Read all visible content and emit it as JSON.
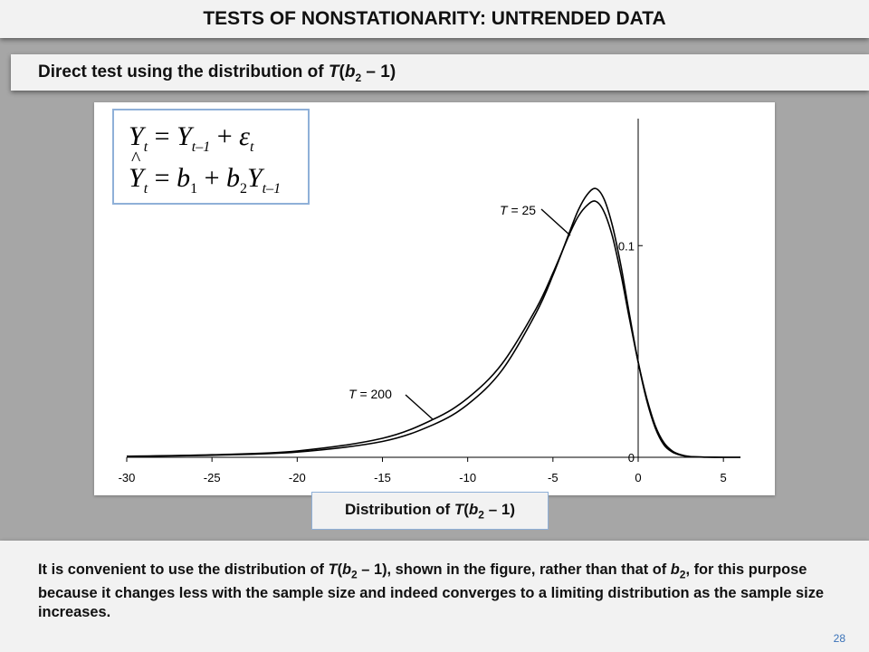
{
  "header": {
    "title": "TESTS OF NONSTATIONARITY: UNTRENDED DATA",
    "subtitle_prefix": "Direct test using the distribution of ",
    "subtitle_T": "T",
    "subtitle_open": "(",
    "subtitle_b": "b",
    "subtitle_sub": "2",
    "subtitle_rest": " – 1)"
  },
  "equations": {
    "line1": {
      "Y": "Y",
      "t": "t",
      "eq": " = ",
      "Y2": "Y",
      "t1": "t–1",
      "plus": " + ",
      "eps": "ε",
      "t2": "t"
    },
    "line2": {
      "Yhat": "Y",
      "t": "t",
      "eq": " = ",
      "b1": "b",
      "one": "1",
      "plus": " + ",
      "b2": "b",
      "two": "2",
      "Y": "Y",
      "t1": "t–1"
    }
  },
  "caption": {
    "prefix": "Distribution of ",
    "T": "T",
    "open": "(",
    "b": "b",
    "sub": "2",
    "rest": " – 1)"
  },
  "body": {
    "p1": "It is convenient to use the distribution of ",
    "p1_T": "T",
    "p1_open": "(",
    "p1_b": "b",
    "p1_sub": "2",
    "p1_mid": " – 1), shown in the figure, rather than that of ",
    "p1_b2": "b",
    "p1_sub2": "2",
    "p1_end": ", for this purpose because it changes less with the sample size and indeed converges to a limiting distribution as the sample size increases."
  },
  "page_number": "28",
  "chart_data": {
    "type": "line",
    "xlim": [
      -30,
      6
    ],
    "ylim": [
      0,
      0.16
    ],
    "x_ticks": [
      "-30",
      "-25",
      "-20",
      "-15",
      "-10",
      "-5",
      "0",
      "5"
    ],
    "x_tick_values": [
      -30,
      -25,
      -20,
      -15,
      -10,
      -5,
      0,
      5
    ],
    "y_ticks": [
      "0",
      "0.1"
    ],
    "y_tick_values": [
      0,
      0.1
    ],
    "grid": false,
    "annotations": [
      {
        "T": "T",
        "rest": " = 25"
      },
      {
        "T": "T",
        "rest": " = 200"
      }
    ],
    "series": [
      {
        "x": [
          -30,
          -25,
          -20,
          -15,
          -12,
          -10,
          -8,
          -6,
          -5,
          -4,
          -3.5,
          -3,
          -2.5,
          -2,
          -1.5,
          -1,
          -0.5,
          0,
          0.5,
          1,
          1.5,
          2,
          2.5,
          3,
          4,
          5,
          6
        ],
        "y": [
          0.0005,
          0.0012,
          0.003,
          0.009,
          0.018,
          0.028,
          0.044,
          0.07,
          0.087,
          0.106,
          0.114,
          0.119,
          0.121,
          0.116,
          0.104,
          0.086,
          0.065,
          0.045,
          0.028,
          0.015,
          0.007,
          0.003,
          0.0012,
          0.0004,
          0.0001,
          2e-05,
          0
        ]
      },
      {
        "x": [
          -30,
          -25,
          -20,
          -15,
          -12,
          -10,
          -8,
          -6,
          -5,
          -4,
          -3.5,
          -3,
          -2.5,
          -2,
          -1.5,
          -1,
          -0.5,
          0,
          0.5,
          1,
          1.5,
          2,
          2.5,
          3,
          4,
          5,
          6
        ],
        "y": [
          0.0004,
          0.001,
          0.0025,
          0.0075,
          0.0155,
          0.025,
          0.041,
          0.068,
          0.086,
          0.107,
          0.117,
          0.124,
          0.127,
          0.122,
          0.109,
          0.09,
          0.067,
          0.045,
          0.027,
          0.014,
          0.006,
          0.0025,
          0.001,
          0.0003,
          0.0001,
          2e-05,
          0
        ]
      }
    ]
  }
}
